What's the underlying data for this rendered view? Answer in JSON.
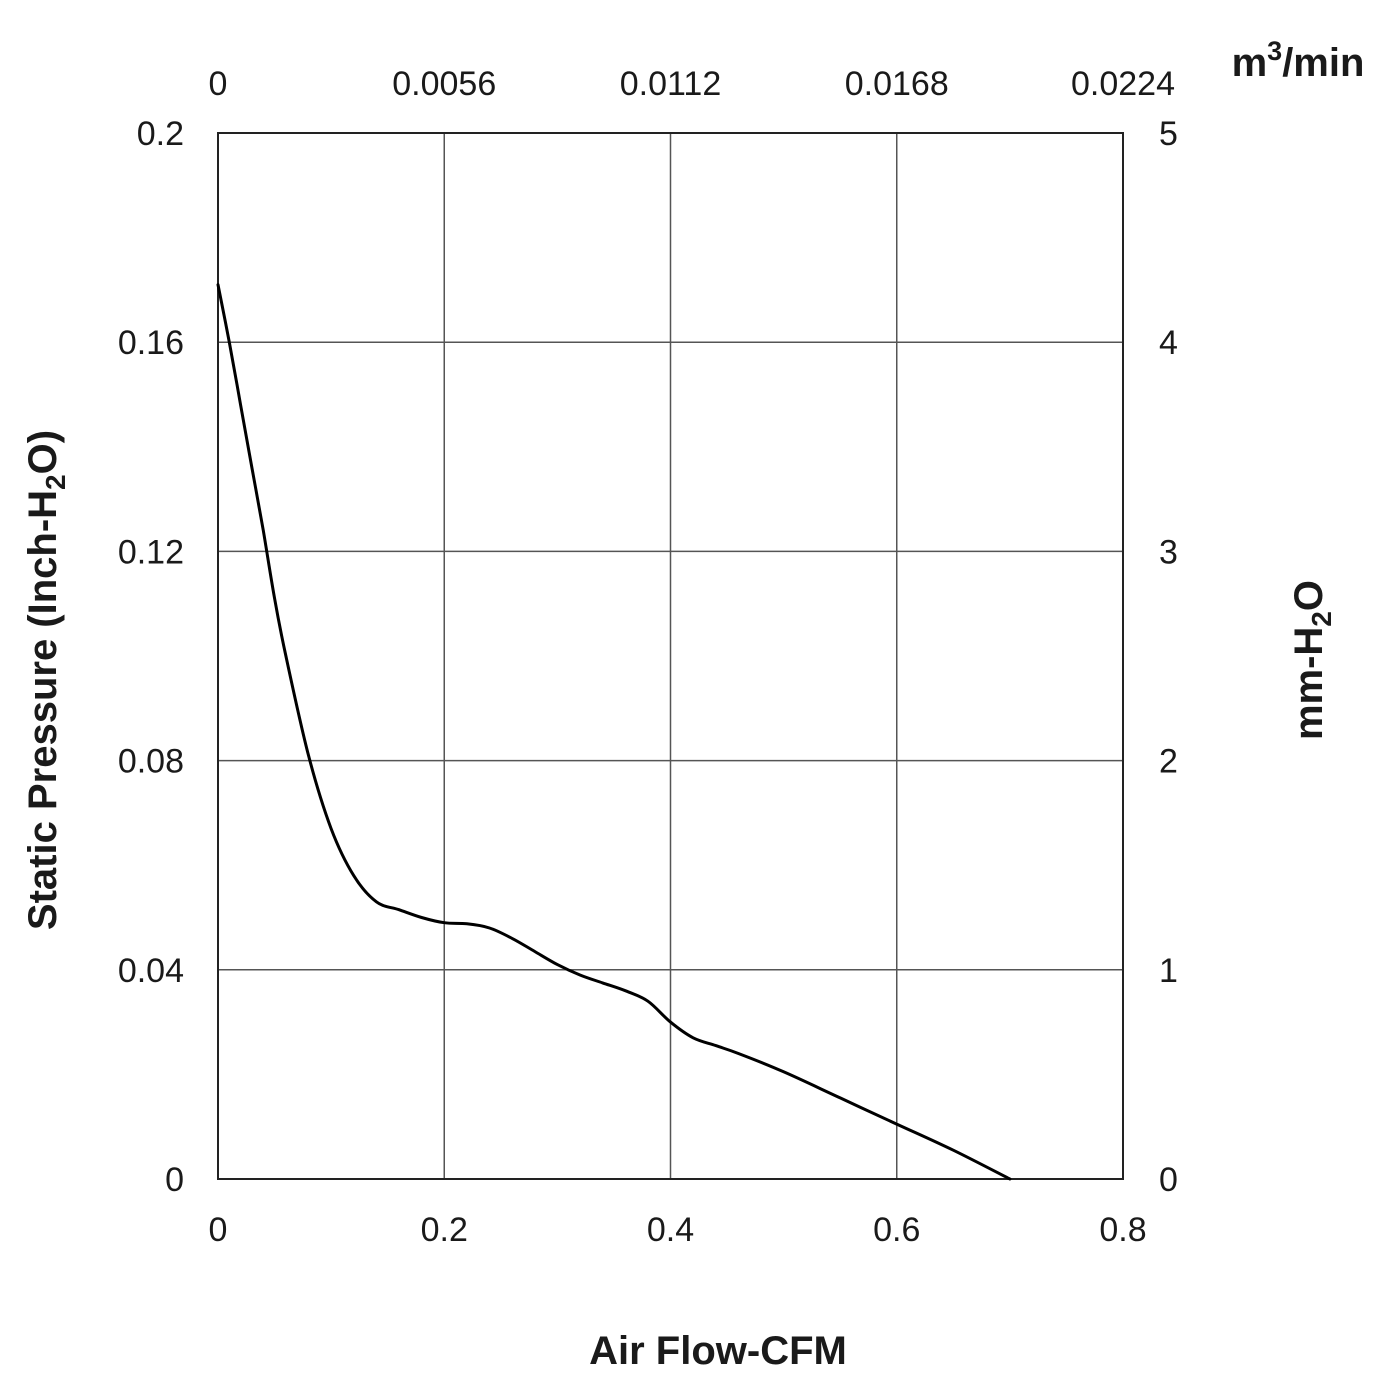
{
  "chart_data": {
    "type": "line",
    "xlabel": "Air Flow-CFM",
    "ylabel": {
      "pre": "Static Pressure (Inch-H",
      "sub": "2",
      "post": "O)"
    },
    "x2label": {
      "pre": "m",
      "sup": "3",
      "post": "/min"
    },
    "y2label": {
      "pre": "mm-H",
      "sub": "2",
      "post": "O"
    },
    "xlim": [
      0,
      0.8
    ],
    "ylim": [
      0,
      0.2
    ],
    "x_ticks": [
      "0",
      "0.2",
      "0.4",
      "0.6",
      "0.8"
    ],
    "y_ticks": [
      "0",
      "0.04",
      "0.08",
      "0.12",
      "0.16",
      "0.2"
    ],
    "x2_ticks": [
      "0",
      "0.0056",
      "0.0112",
      "0.0168",
      "0.0224"
    ],
    "y2_ticks": [
      "0",
      "1",
      "2",
      "3",
      "4",
      "5"
    ],
    "grid": true,
    "line_color": "#000000",
    "grid_color": "#555555",
    "series": [
      {
        "x": [
          0,
          0.01,
          0.02,
          0.03,
          0.04,
          0.05,
          0.06,
          0.08,
          0.1,
          0.12,
          0.14,
          0.16,
          0.18,
          0.2,
          0.22,
          0.24,
          0.26,
          0.28,
          0.3,
          0.32,
          0.34,
          0.36,
          0.38,
          0.4,
          0.42,
          0.44,
          0.46,
          0.5,
          0.55,
          0.6,
          0.65,
          0.7
        ],
        "y": [
          0.171,
          0.16,
          0.148,
          0.136,
          0.124,
          0.111,
          0.1,
          0.081,
          0.067,
          0.058,
          0.053,
          0.0515,
          0.05,
          0.049,
          0.0488,
          0.048,
          0.046,
          0.0435,
          0.041,
          0.039,
          0.0375,
          0.036,
          0.034,
          0.03,
          0.027,
          0.0255,
          0.024,
          0.0205,
          0.0155,
          0.0105,
          0.0055,
          0.0
        ]
      }
    ]
  }
}
